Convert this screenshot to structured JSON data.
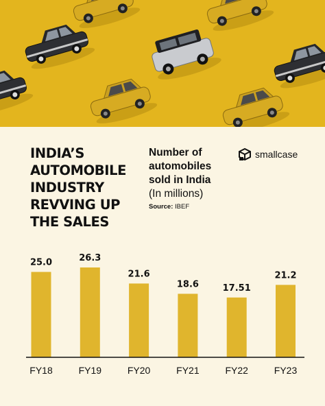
{
  "headline_lines": [
    "INDIA’S",
    "AUTOMOBILE",
    "INDUSTRY",
    "REVVING UP",
    "THE SALES"
  ],
  "subtitle": {
    "bold_lines": [
      "Number of",
      "automobiles",
      "sold in India"
    ],
    "unit": "(In millions)"
  },
  "source": {
    "label": "Source:",
    "value": "IBEF"
  },
  "brand": {
    "name": "smallcase",
    "icon": "smallcase-logo-icon"
  },
  "colors": {
    "background": "#fbf5e3",
    "bar": "#e0b52d",
    "hero": "#e3b51e",
    "text": "#111111"
  },
  "chart_data": {
    "type": "bar",
    "categories": [
      "FY18",
      "FY19",
      "FY20",
      "FY21",
      "FY22",
      "FY23"
    ],
    "values": [
      25.0,
      26.3,
      21.6,
      18.6,
      17.51,
      21.2
    ],
    "value_labels": [
      "25.0",
      "26.3",
      "21.6",
      "18.6",
      "17.51",
      "21.2"
    ],
    "title": "Number of automobiles sold in India",
    "ylabel": "(In millions)",
    "ylim": [
      0,
      26.3
    ],
    "grid": false,
    "legend": "none"
  }
}
